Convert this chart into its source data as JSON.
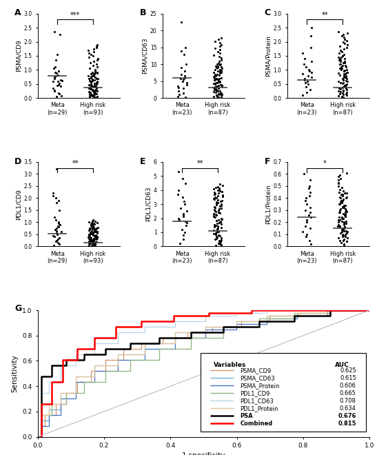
{
  "panels": {
    "A": {
      "ylabel": "PSMA/CD9",
      "meta_n": 29,
      "highrisk_n": 93,
      "meta_mean": 0.8,
      "highrisk_mean": 0.37,
      "ylim": [
        0,
        3
      ],
      "yticks": [
        0,
        0.5,
        1.0,
        1.5,
        2.0,
        2.5,
        3.0
      ],
      "sig": "***",
      "meta_pts": [
        0.05,
        0.08,
        0.15,
        0.18,
        0.25,
        0.28,
        0.35,
        0.42,
        0.48,
        0.52,
        0.58,
        0.62,
        0.65,
        0.68,
        0.72,
        0.75,
        0.78,
        0.82,
        0.88,
        0.92,
        0.95,
        1.05,
        1.1,
        1.35,
        1.55,
        2.25,
        2.35,
        0.45,
        0.6
      ],
      "highrisk_pts": [
        0.02,
        0.05,
        0.08,
        0.1,
        0.12,
        0.15,
        0.18,
        0.2,
        0.22,
        0.25,
        0.28,
        0.3,
        0.32,
        0.35,
        0.38,
        0.4,
        0.42,
        0.45,
        0.48,
        0.5,
        0.52,
        0.55,
        0.58,
        0.6,
        0.62,
        0.65,
        0.68,
        0.7,
        0.72,
        0.75,
        0.78,
        0.8,
        0.82,
        0.85,
        0.88,
        0.9,
        0.05,
        0.1,
        0.15,
        0.2,
        0.25,
        0.3,
        0.35,
        0.4,
        0.45,
        0.5,
        0.55,
        0.6,
        0.65,
        0.7,
        0.75,
        0.8,
        0.85,
        0.9,
        0.03,
        0.07,
        0.12,
        0.17,
        0.22,
        0.27,
        0.32,
        0.37,
        0.42,
        0.47,
        0.52,
        0.57,
        0.62,
        0.67,
        0.72,
        0.77,
        0.82,
        0.87,
        0.92,
        0.97,
        1.0,
        1.05,
        1.1,
        1.15,
        1.2,
        1.25,
        1.3,
        1.35,
        1.4,
        1.45,
        1.5,
        1.55,
        1.6,
        1.65,
        1.7,
        1.75,
        1.8,
        1.85,
        1.9
      ]
    },
    "B": {
      "ylabel": "PSMA/CD63",
      "meta_n": 23,
      "highrisk_n": 87,
      "meta_mean": 6.0,
      "highrisk_mean": 3.0,
      "ylim": [
        0,
        25
      ],
      "yticks": [
        0,
        5,
        10,
        15,
        20,
        25
      ],
      "sig": null,
      "meta_pts": [
        0.2,
        0.5,
        1.0,
        1.5,
        2.0,
        2.8,
        3.5,
        4.0,
        4.5,
        5.0,
        5.5,
        6.0,
        6.5,
        7.0,
        8.0,
        9.0,
        10.0,
        13.0,
        14.0,
        15.0,
        22.5,
        3.0,
        5.8
      ],
      "highrisk_pts": [
        0.1,
        0.3,
        0.5,
        0.8,
        1.0,
        1.2,
        1.5,
        1.7,
        2.0,
        2.2,
        2.5,
        2.7,
        3.0,
        3.2,
        3.5,
        3.7,
        4.0,
        4.2,
        4.5,
        4.7,
        5.0,
        5.2,
        5.5,
        5.7,
        6.0,
        6.5,
        7.0,
        7.5,
        8.0,
        8.5,
        9.0,
        9.5,
        10.0,
        1.0,
        1.5,
        2.0,
        2.5,
        3.0,
        3.5,
        4.0,
        4.5,
        5.0,
        5.5,
        6.0,
        6.5,
        7.0,
        7.5,
        8.0,
        8.5,
        9.0,
        9.5,
        10.0,
        0.2,
        0.5,
        0.8,
        1.2,
        1.8,
        2.3,
        2.8,
        3.3,
        3.8,
        4.3,
        4.8,
        5.3,
        5.8,
        6.3,
        6.8,
        7.3,
        7.8,
        8.3,
        8.8,
        9.3,
        9.8,
        10.3,
        10.8,
        11.3,
        11.8,
        12.3,
        12.8,
        13.3,
        13.8,
        14.3,
        14.8,
        15.3,
        15.8,
        16.3,
        16.8,
        17.3,
        17.8
      ]
    },
    "C": {
      "ylabel": "PSMA/Protein",
      "meta_n": 23,
      "highrisk_n": 87,
      "meta_mean": 0.65,
      "highrisk_mean": 0.38,
      "ylim": [
        0,
        3
      ],
      "yticks": [
        0,
        0.5,
        1.0,
        1.5,
        2.0,
        2.5,
        3.0
      ],
      "sig": "**",
      "meta_pts": [
        0.1,
        0.2,
        0.3,
        0.4,
        0.5,
        0.55,
        0.6,
        0.65,
        0.7,
        0.75,
        0.8,
        0.85,
        0.9,
        0.95,
        1.0,
        1.1,
        1.2,
        1.3,
        1.4,
        1.6,
        1.8,
        2.2,
        2.5
      ],
      "highrisk_pts": [
        0.02,
        0.05,
        0.08,
        0.12,
        0.15,
        0.18,
        0.22,
        0.25,
        0.28,
        0.32,
        0.35,
        0.38,
        0.42,
        0.45,
        0.48,
        0.52,
        0.55,
        0.58,
        0.62,
        0.65,
        0.68,
        0.72,
        0.75,
        0.78,
        0.82,
        0.85,
        0.88,
        0.92,
        0.95,
        0.98,
        1.0,
        1.05,
        1.1,
        1.15,
        1.2,
        1.25,
        1.3,
        1.35,
        1.4,
        1.45,
        1.5,
        1.55,
        1.6,
        1.65,
        1.7,
        1.75,
        1.8,
        1.85,
        1.9,
        1.95,
        2.0,
        2.05,
        2.1,
        2.15,
        2.2,
        2.25,
        2.3,
        2.35,
        0.1,
        0.15,
        0.2,
        0.25,
        0.3,
        0.35,
        0.4,
        0.45,
        0.5,
        0.55,
        0.6,
        0.65,
        0.7,
        0.75,
        0.8,
        0.85,
        0.9,
        0.95,
        1.0,
        1.05,
        1.1,
        1.15,
        1.2,
        1.25,
        1.3,
        1.35,
        1.4,
        1.45,
        1.5
      ]
    },
    "D": {
      "ylabel": "PDL1/CD9",
      "meta_n": 29,
      "highrisk_n": 93,
      "meta_mean": 0.52,
      "highrisk_mean": 0.15,
      "ylim": [
        0,
        3.5
      ],
      "yticks": [
        0,
        0.5,
        1.0,
        1.5,
        2.0,
        2.5,
        3.0,
        3.5
      ],
      "sig": "**",
      "meta_pts": [
        0.05,
        0.1,
        0.15,
        0.2,
        0.25,
        0.3,
        0.35,
        0.4,
        0.45,
        0.5,
        0.55,
        0.6,
        0.65,
        0.7,
        0.75,
        0.8,
        0.85,
        0.9,
        0.95,
        1.0,
        1.1,
        1.2,
        1.5,
        1.8,
        1.9,
        2.0,
        2.1,
        2.2,
        3.2
      ],
      "highrisk_pts": [
        0.02,
        0.04,
        0.06,
        0.08,
        0.1,
        0.12,
        0.14,
        0.16,
        0.18,
        0.2,
        0.22,
        0.24,
        0.26,
        0.28,
        0.3,
        0.32,
        0.34,
        0.36,
        0.38,
        0.4,
        0.42,
        0.44,
        0.46,
        0.48,
        0.5,
        0.52,
        0.54,
        0.56,
        0.58,
        0.6,
        0.62,
        0.64,
        0.66,
        0.68,
        0.7,
        0.72,
        0.74,
        0.76,
        0.78,
        0.8,
        0.03,
        0.05,
        0.07,
        0.09,
        0.11,
        0.13,
        0.15,
        0.17,
        0.19,
        0.21,
        0.23,
        0.25,
        0.27,
        0.29,
        0.31,
        0.33,
        0.35,
        0.37,
        0.39,
        0.41,
        0.43,
        0.45,
        0.47,
        0.49,
        0.51,
        0.53,
        0.55,
        0.57,
        0.59,
        0.61,
        0.63,
        0.65,
        0.67,
        0.69,
        0.71,
        0.73,
        0.75,
        0.77,
        0.79,
        0.81,
        0.83,
        0.85,
        0.87,
        0.89,
        0.91,
        0.93,
        0.95,
        0.97,
        0.99,
        1.01,
        1.03,
        1.05,
        1.1
      ]
    },
    "E": {
      "ylabel": "PDL1/CD63",
      "meta_n": 23,
      "highrisk_n": 87,
      "meta_mean": 1.8,
      "highrisk_mean": 1.1,
      "ylim": [
        0,
        6
      ],
      "yticks": [
        0,
        1,
        2,
        3,
        4,
        5,
        6
      ],
      "sig": "**",
      "meta_pts": [
        0.2,
        0.5,
        0.8,
        1.0,
        1.2,
        1.5,
        1.7,
        1.8,
        1.9,
        2.0,
        2.1,
        2.2,
        2.3,
        2.5,
        2.7,
        3.0,
        3.2,
        3.5,
        3.7,
        4.0,
        4.5,
        4.8,
        5.3
      ],
      "highrisk_pts": [
        0.05,
        0.15,
        0.25,
        0.35,
        0.45,
        0.55,
        0.65,
        0.75,
        0.85,
        0.95,
        1.05,
        1.15,
        1.25,
        1.35,
        1.45,
        1.55,
        1.65,
        1.75,
        1.85,
        1.95,
        2.05,
        2.15,
        2.25,
        2.35,
        2.45,
        2.55,
        2.65,
        2.75,
        2.85,
        2.95,
        3.05,
        3.15,
        3.25,
        3.35,
        3.45,
        3.55,
        3.65,
        3.75,
        3.85,
        3.95,
        4.05,
        4.15,
        4.25,
        4.35,
        4.45,
        0.1,
        0.2,
        0.3,
        0.4,
        0.5,
        0.6,
        0.7,
        0.8,
        0.9,
        1.0,
        1.1,
        1.2,
        1.3,
        1.4,
        1.5,
        1.6,
        1.7,
        1.8,
        1.9,
        2.0,
        2.1,
        2.2,
        2.3,
        2.4,
        2.5,
        2.6,
        2.7,
        2.8,
        2.9,
        3.0,
        3.1,
        3.2,
        3.3,
        3.4,
        3.5,
        3.6,
        3.7,
        3.8,
        3.9,
        4.0,
        4.1,
        4.2
      ]
    },
    "F": {
      "ylabel": "PDL1/Protein",
      "meta_n": 23,
      "highrisk_n": 87,
      "meta_mean": 0.24,
      "highrisk_mean": 0.15,
      "ylim": [
        0,
        0.7
      ],
      "yticks": [
        0,
        0.1,
        0.2,
        0.3,
        0.4,
        0.5,
        0.6,
        0.7
      ],
      "sig": "*",
      "meta_pts": [
        0.02,
        0.05,
        0.08,
        0.1,
        0.12,
        0.15,
        0.17,
        0.2,
        0.22,
        0.24,
        0.26,
        0.28,
        0.3,
        0.32,
        0.35,
        0.38,
        0.4,
        0.42,
        0.45,
        0.48,
        0.5,
        0.55,
        0.6
      ],
      "highrisk_pts": [
        0.01,
        0.02,
        0.03,
        0.04,
        0.05,
        0.06,
        0.07,
        0.08,
        0.09,
        0.1,
        0.11,
        0.12,
        0.13,
        0.14,
        0.15,
        0.16,
        0.17,
        0.18,
        0.19,
        0.2,
        0.21,
        0.22,
        0.23,
        0.24,
        0.25,
        0.26,
        0.27,
        0.28,
        0.29,
        0.3,
        0.31,
        0.32,
        0.33,
        0.34,
        0.35,
        0.36,
        0.37,
        0.38,
        0.39,
        0.4,
        0.41,
        0.42,
        0.43,
        0.44,
        0.45,
        0.05,
        0.08,
        0.11,
        0.14,
        0.17,
        0.2,
        0.23,
        0.26,
        0.29,
        0.32,
        0.35,
        0.38,
        0.41,
        0.44,
        0.47,
        0.5,
        0.53,
        0.56,
        0.59,
        0.1,
        0.13,
        0.16,
        0.19,
        0.22,
        0.25,
        0.28,
        0.31,
        0.34,
        0.37,
        0.4,
        0.43,
        0.46,
        0.49,
        0.52,
        0.55,
        0.58,
        0.61,
        0.04,
        0.07,
        0.12,
        0.15,
        0.18,
        0.21,
        0.24,
        0.27,
        0.3
      ]
    }
  },
  "roc_curves": {
    "PSMA_CD9": {
      "color": "#D4956A",
      "auc": "0.625",
      "fpr": [
        0.0,
        0.011,
        0.011,
        0.022,
        0.022,
        0.054,
        0.054,
        0.086,
        0.086,
        0.118,
        0.118,
        0.161,
        0.161,
        0.204,
        0.204,
        0.258,
        0.258,
        0.312,
        0.312,
        0.376,
        0.376,
        0.452,
        0.452,
        0.527,
        0.527,
        0.613,
        0.613,
        0.699,
        0.699,
        0.785,
        0.785,
        0.871,
        0.871,
        1.0
      ],
      "tpr": [
        0.0,
        0.0,
        0.087,
        0.087,
        0.174,
        0.174,
        0.261,
        0.261,
        0.348,
        0.348,
        0.435,
        0.435,
        0.522,
        0.522,
        0.609,
        0.609,
        0.696,
        0.696,
        0.739,
        0.739,
        0.783,
        0.783,
        0.826,
        0.826,
        0.87,
        0.87,
        0.913,
        0.913,
        0.957,
        0.957,
        0.978,
        0.978,
        1.0,
        1.0
      ]
    },
    "PSMA_CD63": {
      "color": "#6EB5D8",
      "auc": "0.615",
      "fpr": [
        0.0,
        0.011,
        0.011,
        0.034,
        0.034,
        0.069,
        0.069,
        0.115,
        0.115,
        0.172,
        0.172,
        0.241,
        0.241,
        0.322,
        0.322,
        0.414,
        0.414,
        0.506,
        0.506,
        0.598,
        0.598,
        0.69,
        0.69,
        0.782,
        0.782,
        0.874,
        0.874,
        1.0
      ],
      "tpr": [
        0.0,
        0.0,
        0.13,
        0.13,
        0.217,
        0.217,
        0.348,
        0.348,
        0.478,
        0.478,
        0.565,
        0.565,
        0.652,
        0.652,
        0.739,
        0.739,
        0.826,
        0.826,
        0.87,
        0.87,
        0.913,
        0.913,
        0.957,
        0.957,
        0.978,
        0.978,
        1.0,
        1.0
      ]
    },
    "PSMA_Protein": {
      "color": "#4472C4",
      "auc": "0.606",
      "fpr": [
        0.0,
        0.011,
        0.011,
        0.034,
        0.034,
        0.069,
        0.069,
        0.115,
        0.115,
        0.172,
        0.172,
        0.241,
        0.241,
        0.322,
        0.322,
        0.414,
        0.414,
        0.506,
        0.506,
        0.598,
        0.598,
        0.69,
        0.69,
        0.782,
        0.782,
        0.874,
        0.874,
        1.0
      ],
      "tpr": [
        0.0,
        0.0,
        0.087,
        0.087,
        0.174,
        0.174,
        0.304,
        0.304,
        0.435,
        0.435,
        0.522,
        0.522,
        0.609,
        0.609,
        0.696,
        0.696,
        0.783,
        0.783,
        0.848,
        0.848,
        0.891,
        0.891,
        0.935,
        0.935,
        0.957,
        0.957,
        1.0,
        1.0
      ]
    },
    "PDL1_CD9": {
      "color": "#8DB57C",
      "auc": "0.665",
      "fpr": [
        0.0,
        0.011,
        0.011,
        0.043,
        0.043,
        0.086,
        0.086,
        0.14,
        0.14,
        0.204,
        0.204,
        0.28,
        0.28,
        0.366,
        0.366,
        0.462,
        0.462,
        0.559,
        0.559,
        0.667,
        0.667,
        0.774,
        0.774,
        0.882,
        0.882,
        1.0
      ],
      "tpr": [
        0.0,
        0.0,
        0.174,
        0.174,
        0.261,
        0.261,
        0.348,
        0.348,
        0.435,
        0.435,
        0.522,
        0.522,
        0.609,
        0.609,
        0.696,
        0.696,
        0.783,
        0.783,
        0.87,
        0.87,
        0.935,
        0.935,
        0.978,
        0.978,
        1.0,
        1.0
      ]
    },
    "PDL1_CD63": {
      "color": "#B8D4EA",
      "auc": "0.708",
      "fpr": [
        0.0,
        0.011,
        0.011,
        0.034,
        0.034,
        0.069,
        0.069,
        0.115,
        0.115,
        0.172,
        0.172,
        0.241,
        0.241,
        0.322,
        0.322,
        0.414,
        0.414,
        0.506,
        0.506,
        0.598,
        0.598,
        0.69,
        0.69,
        0.782,
        0.782,
        0.874,
        0.874,
        1.0
      ],
      "tpr": [
        0.0,
        0.0,
        0.348,
        0.348,
        0.435,
        0.435,
        0.565,
        0.565,
        0.652,
        0.652,
        0.739,
        0.739,
        0.826,
        0.826,
        0.87,
        0.87,
        0.913,
        0.913,
        0.957,
        0.957,
        0.978,
        0.978,
        1.0,
        1.0,
        1.0,
        1.0,
        1.0,
        1.0
      ]
    },
    "PDL1_Protein": {
      "color": "#E8C49A",
      "auc": "0.634",
      "fpr": [
        0.0,
        0.011,
        0.011,
        0.034,
        0.034,
        0.069,
        0.069,
        0.115,
        0.115,
        0.172,
        0.172,
        0.241,
        0.241,
        0.322,
        0.322,
        0.414,
        0.414,
        0.506,
        0.506,
        0.598,
        0.598,
        0.69,
        0.69,
        0.782,
        0.782,
        0.874,
        0.874,
        1.0
      ],
      "tpr": [
        0.0,
        0.0,
        0.174,
        0.174,
        0.261,
        0.261,
        0.348,
        0.348,
        0.478,
        0.478,
        0.565,
        0.565,
        0.652,
        0.652,
        0.739,
        0.739,
        0.826,
        0.826,
        0.87,
        0.87,
        0.913,
        0.913,
        0.957,
        0.957,
        0.978,
        0.978,
        1.0,
        1.0
      ]
    },
    "PSA": {
      "color": "#000000",
      "auc": "0.676",
      "fpr": [
        0.0,
        0.011,
        0.011,
        0.043,
        0.043,
        0.086,
        0.086,
        0.14,
        0.14,
        0.204,
        0.204,
        0.28,
        0.28,
        0.366,
        0.366,
        0.462,
        0.462,
        0.559,
        0.559,
        0.667,
        0.667,
        0.774,
        0.774,
        0.882,
        0.882,
        1.0
      ],
      "tpr": [
        0.0,
        0.0,
        0.478,
        0.478,
        0.565,
        0.565,
        0.609,
        0.609,
        0.652,
        0.652,
        0.696,
        0.696,
        0.739,
        0.739,
        0.783,
        0.783,
        0.826,
        0.826,
        0.87,
        0.87,
        0.913,
        0.913,
        0.957,
        0.957,
        1.0,
        1.0
      ]
    },
    "Combined": {
      "color": "#FF0000",
      "auc": "0.815",
      "fpr": [
        0.0,
        0.011,
        0.011,
        0.043,
        0.043,
        0.075,
        0.075,
        0.118,
        0.118,
        0.172,
        0.172,
        0.236,
        0.236,
        0.312,
        0.312,
        0.409,
        0.409,
        0.516,
        0.516,
        0.645,
        0.645,
        0.785,
        0.785,
        0.903,
        0.903,
        1.0
      ],
      "tpr": [
        0.0,
        0.0,
        0.261,
        0.261,
        0.435,
        0.435,
        0.609,
        0.609,
        0.696,
        0.696,
        0.783,
        0.783,
        0.87,
        0.87,
        0.913,
        0.913,
        0.957,
        0.957,
        0.978,
        0.978,
        1.0,
        1.0,
        1.0,
        1.0,
        1.0,
        1.0
      ]
    }
  },
  "legend_order": [
    "PSMA_CD9",
    "PSMA_CD63",
    "PSMA_Protein",
    "PDL1_CD9",
    "PDL1_CD63",
    "PDL1_Protein",
    "PSA",
    "Combined"
  ]
}
